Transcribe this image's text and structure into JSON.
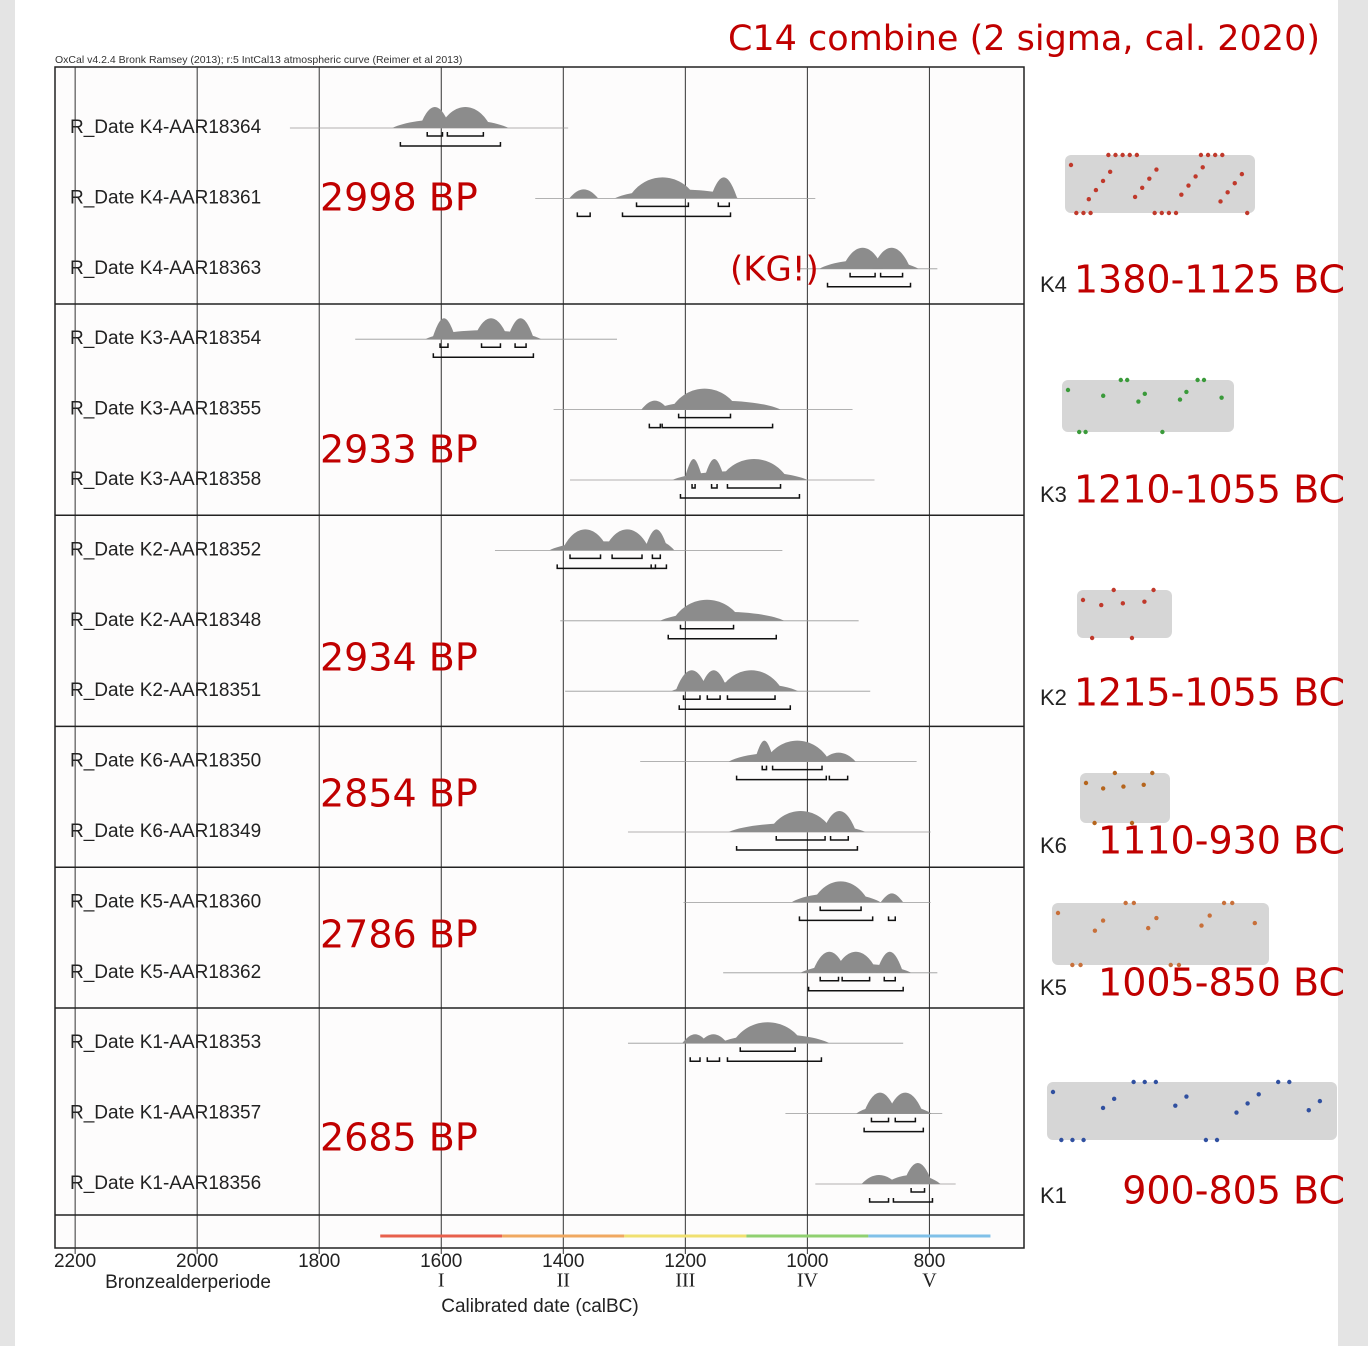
{
  "chart_data": {
    "type": "calibration",
    "title": "C14 combine (2 sigma, cal. 2020)",
    "header": "OxCal v4.2.4 Bronk Ramsey (2013); r:5 IntCal13 atmospheric curve (Reimer et al 2013)",
    "x_label": "Calibrated date (calBC)",
    "period_label": "Bronzealderperiode",
    "xlim": [
      2233,
      645
    ],
    "xticks": [
      2200,
      2000,
      1800,
      1600,
      1400,
      1200,
      1000,
      800
    ],
    "grid": true,
    "periods": [
      {
        "label": "I",
        "from": 1700,
        "to": 1500,
        "color": "#e8604c"
      },
      {
        "label": "II",
        "from": 1500,
        "to": 1300,
        "color": "#f0a860"
      },
      {
        "label": "III",
        "from": 1300,
        "to": 1100,
        "color": "#f0e070"
      },
      {
        "label": "IV",
        "from": 1100,
        "to": 900,
        "color": "#90d070"
      },
      {
        "label": "V",
        "from": 900,
        "to": 700,
        "color": "#80c0e8"
      }
    ],
    "groups": [
      {
        "code": "K4",
        "bp": "2998 BP",
        "range": "1380-1125 BC",
        "series": [
          {
            "name": "R_Date K4-AAR18364",
            "extent": [
              1848,
              1392
            ],
            "range68": [
              [
                1623,
                1598
              ],
              [
                1590,
                1531
              ]
            ],
            "range95": [
              [
                1667,
                1503
              ]
            ]
          },
          {
            "name": "R_Date K4-AAR18361",
            "extent": [
              1446,
              987
            ],
            "range68": [
              [
                1280,
                1195
              ],
              [
                1146,
                1128
              ]
            ],
            "range95": [
              [
                1377,
                1356
              ],
              [
                1303,
                1126
              ]
            ]
          },
          {
            "name": "R_Date K4-AAR18363",
            "note": "(KG!)",
            "extent": [
              1012,
              787
            ],
            "range68": [
              [
                930,
                889
              ],
              [
                880,
                844
              ]
            ],
            "range95": [
              [
                967,
                831
              ]
            ]
          }
        ]
      },
      {
        "code": "K3",
        "bp": "2933 BP",
        "range": "1210-1055 BC",
        "series": [
          {
            "name": "R_Date K3-AAR18354",
            "extent": [
              1741,
              1312
            ],
            "range68": [
              [
                1602,
                1589
              ],
              [
                1534,
                1503
              ],
              [
                1479,
                1461
              ]
            ],
            "range95": [
              [
                1613,
                1449
              ]
            ]
          },
          {
            "name": "R_Date K3-AAR18355",
            "extent": [
              1416,
              926
            ],
            "range68": [
              [
                1211,
                1126
              ]
            ],
            "range95": [
              [
                1259,
                1241
              ],
              [
                1238,
                1057
              ]
            ]
          },
          {
            "name": "R_Date K3-AAR18358",
            "extent": [
              1389,
              890
            ],
            "range68": [
              [
                1189,
                1184
              ],
              [
                1157,
                1148
              ],
              [
                1131,
                1044
              ]
            ],
            "range95": [
              [
                1208,
                1013
              ]
            ]
          }
        ]
      },
      {
        "code": "K2",
        "bp": "2934 BP",
        "range": "1215-1055 BC",
        "series": [
          {
            "name": "R_Date K2-AAR18352",
            "extent": [
              1512,
              1041
            ],
            "range68": [
              [
                1389,
                1339
              ],
              [
                1320,
                1271
              ],
              [
                1254,
                1241
              ]
            ],
            "range95": [
              [
                1410,
                1249
              ],
              [
                1256,
                1231
              ]
            ]
          },
          {
            "name": "R_Date K2-AAR18348",
            "extent": [
              1405,
              916
            ],
            "range68": [
              [
                1208,
                1121
              ]
            ],
            "range95": [
              [
                1228,
                1051
              ]
            ]
          },
          {
            "name": "R_Date K2-AAR18351",
            "extent": [
              1397,
              897
            ],
            "range68": [
              [
                1203,
                1176
              ],
              [
                1164,
                1143
              ],
              [
                1131,
                1053
              ]
            ],
            "range95": [
              [
                1210,
                1028
              ]
            ]
          }
        ]
      },
      {
        "code": "K6",
        "bp": "2854 BP",
        "range": "1110-930 BC",
        "series": [
          {
            "name": "R_Date K6-AAR18350",
            "extent": [
              1274,
              821
            ],
            "range68": [
              [
                1074,
                1067
              ],
              [
                1057,
                976
              ]
            ],
            "range95": [
              [
                1116,
                969
              ],
              [
                964,
                934
              ]
            ]
          },
          {
            "name": "R_Date K6-AAR18349",
            "extent": [
              1294,
              798
            ],
            "range68": [
              [
                1051,
                971
              ],
              [
                962,
                933
              ]
            ],
            "range95": [
              [
                1116,
                918
              ]
            ]
          }
        ]
      },
      {
        "code": "K5",
        "bp": "2786 BP",
        "range": "1005-850 BC",
        "series": [
          {
            "name": "R_Date K5-AAR18360",
            "extent": [
              1203,
              798
            ],
            "range68": [
              [
                979,
                912
              ]
            ],
            "range95": [
              [
                1013,
                893
              ],
              [
                867,
                856
              ]
            ]
          },
          {
            "name": "R_Date K5-AAR18362",
            "extent": [
              1138,
              787
            ],
            "range68": [
              [
                979,
                949
              ],
              [
                943,
                898
              ],
              [
                874,
                856
              ]
            ],
            "range95": [
              [
                998,
                843
              ]
            ]
          }
        ]
      },
      {
        "code": "K1",
        "bp": "2685 BP",
        "range": "900-805 BC",
        "series": [
          {
            "name": "R_Date K1-AAR18353",
            "extent": [
              1294,
              843
            ],
            "range68": [
              [
                1110,
                1020
              ]
            ],
            "range95": [
              [
                1192,
                1176
              ],
              [
                1164,
                1144
              ],
              [
                1131,
                977
              ]
            ]
          },
          {
            "name": "R_Date K1-AAR18357",
            "extent": [
              1036,
              779
            ],
            "range68": [
              [
                895,
                867
              ],
              [
                856,
                823
              ]
            ],
            "range95": [
              [
                907,
                810
              ]
            ]
          },
          {
            "name": "R_Date K1-AAR18356",
            "extent": [
              987,
              757
            ],
            "range68": [
              [
                830,
                808
              ]
            ],
            "range95": [
              [
                898,
                867
              ],
              [
                859,
                795
              ]
            ]
          }
        ]
      }
    ]
  }
}
